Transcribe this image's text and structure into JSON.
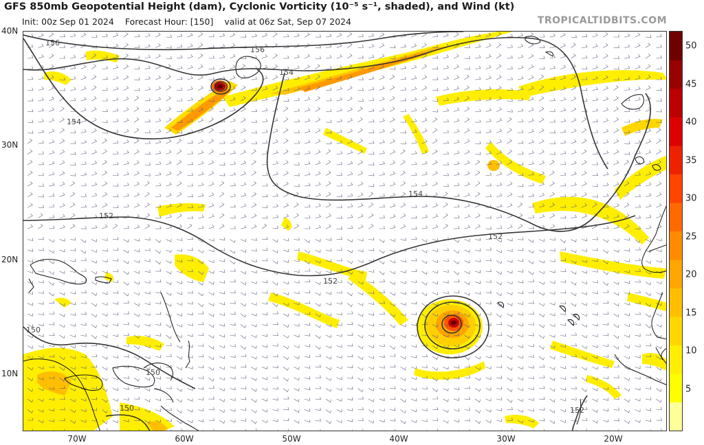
{
  "header": {
    "title": "GFS 850mb Geopotential Height (dam), Cyclonic Vorticity (10⁻⁵ s⁻¹, shaded), and Wind (kt)",
    "init": "Init: 00z Sep 01 2024",
    "forecast_hour": "Forecast Hour: [150]",
    "valid": "valid at 06z Sat, Sep 07 2024",
    "brand": "TROPICALTIDBITS.COM"
  },
  "axes": {
    "lat_labels": [
      "40N",
      "30N",
      "20N",
      "10N"
    ],
    "lon_labels": [
      "70W",
      "60W",
      "50W",
      "40W",
      "30W",
      "20W"
    ]
  },
  "colorbar": {
    "ticks": [
      "5",
      "10",
      "15",
      "20",
      "25",
      "30",
      "35",
      "40",
      "45",
      "50"
    ],
    "colors": [
      "#ffff99",
      "#ffff00",
      "#ffee00",
      "#ffd700",
      "#ffbf00",
      "#ffa500",
      "#ff8c00",
      "#ff6a00",
      "#ff4500",
      "#ee2200",
      "#dd0000",
      "#bb0000",
      "#990000",
      "#6e0000"
    ]
  },
  "contours": {
    "labels": [
      "156",
      "156",
      "154",
      "154",
      "154",
      "152",
      "152",
      "152",
      "150",
      "150",
      "150",
      "152"
    ]
  }
}
